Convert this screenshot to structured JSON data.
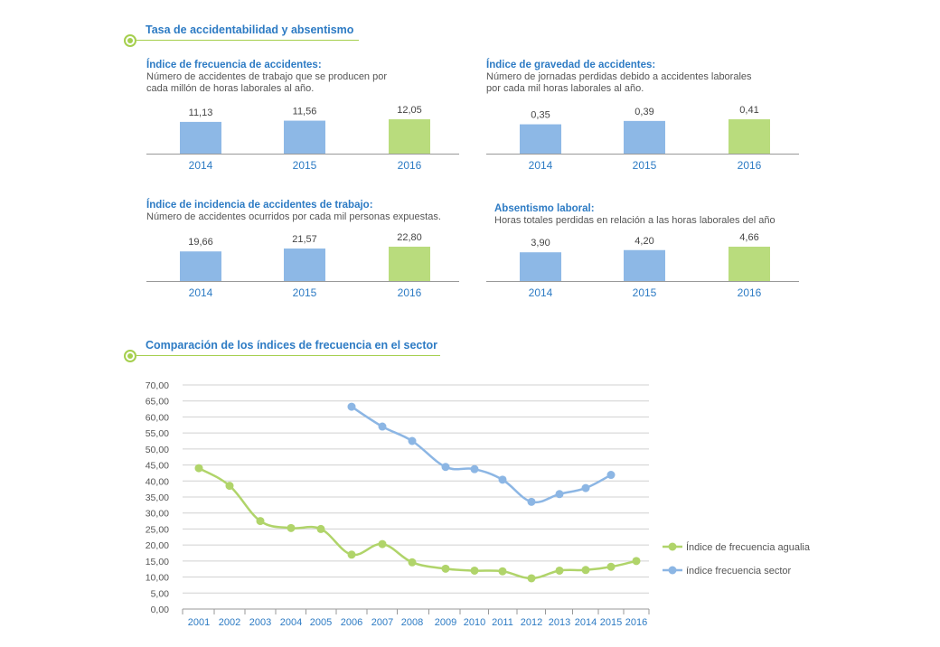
{
  "section1_title": "Tasa de accidentabilidad y absentismo",
  "section2_title": "Comparación de los índices de frecuencia en el sector",
  "colors": {
    "blue": "#8db8e6",
    "green": "#b9dc7d",
    "accent": "#2d7bc4",
    "line_green": "#b0d46a",
    "line_blue": "#8cb6e4"
  },
  "chart_data": [
    {
      "type": "bar",
      "title": "Índice de frecuencia de accidentes:",
      "subtitle": "Número de accidentes de trabajo que se producen por cada millón de horas laborales al año.",
      "categories": [
        "2014",
        "2015",
        "2016"
      ],
      "values": [
        11.13,
        11.56,
        12.05
      ],
      "labels": [
        "11,13",
        "11,56",
        "12,05"
      ]
    },
    {
      "type": "bar",
      "title": "Índice de gravedad de accidentes:",
      "subtitle": "Número de jornadas perdidas debido a accidentes laborales por cada mil horas laborales al año.",
      "categories": [
        "2014",
        "2015",
        "2016"
      ],
      "values": [
        0.35,
        0.39,
        0.41
      ],
      "labels": [
        "0,35",
        "0,39",
        "0,41"
      ]
    },
    {
      "type": "bar",
      "title": "Índice de incidencia de accidentes de trabajo:",
      "subtitle": "Número de accidentes ocurridos por cada mil personas expuestas.",
      "categories": [
        "2014",
        "2015",
        "2016"
      ],
      "values": [
        19.66,
        21.57,
        22.8
      ],
      "labels": [
        "19,66",
        "21,57",
        "22,80"
      ]
    },
    {
      "type": "bar",
      "title": "Absentismo laboral:",
      "subtitle": "Horas totales perdidas en relación a las horas laborales del año",
      "categories": [
        "2014",
        "2015",
        "2016"
      ],
      "values": [
        3.9,
        4.2,
        4.66
      ],
      "labels": [
        "3,90",
        "4,20",
        "4,66"
      ]
    },
    {
      "type": "line",
      "x": [
        "2001",
        "2002",
        "2003",
        "2004",
        "2005",
        "2006",
        "2007",
        "2008",
        "2009",
        "2010",
        "2011",
        "2012",
        "2013",
        "2014",
        "2015",
        "2016"
      ],
      "ylim": [
        0,
        70
      ],
      "yticks": [
        "0,00",
        "5,00",
        "10,00",
        "15,00",
        "20,00",
        "25,00",
        "30,00",
        "35,00",
        "40,00",
        "45,00",
        "50,00",
        "55,00",
        "60,00",
        "65,00",
        "70,00"
      ],
      "legend_position": "right",
      "series": [
        {
          "name": "Índice de frecuencia agualia",
          "color": "#b0d46a",
          "values": [
            44.0,
            38.5,
            27.5,
            25.3,
            25.0,
            17.0,
            20.3,
            14.6,
            12.6,
            12.0,
            11.8,
            9.6,
            12.0,
            12.2,
            13.2,
            15.0
          ]
        },
        {
          "name": "índice frecuencia sector",
          "color": "#8cb6e4",
          "values": [
            null,
            null,
            null,
            null,
            null,
            63.2,
            57.0,
            52.5,
            44.4,
            43.7,
            40.4,
            33.5,
            35.9,
            37.8,
            41.9,
            null
          ]
        }
      ]
    }
  ]
}
